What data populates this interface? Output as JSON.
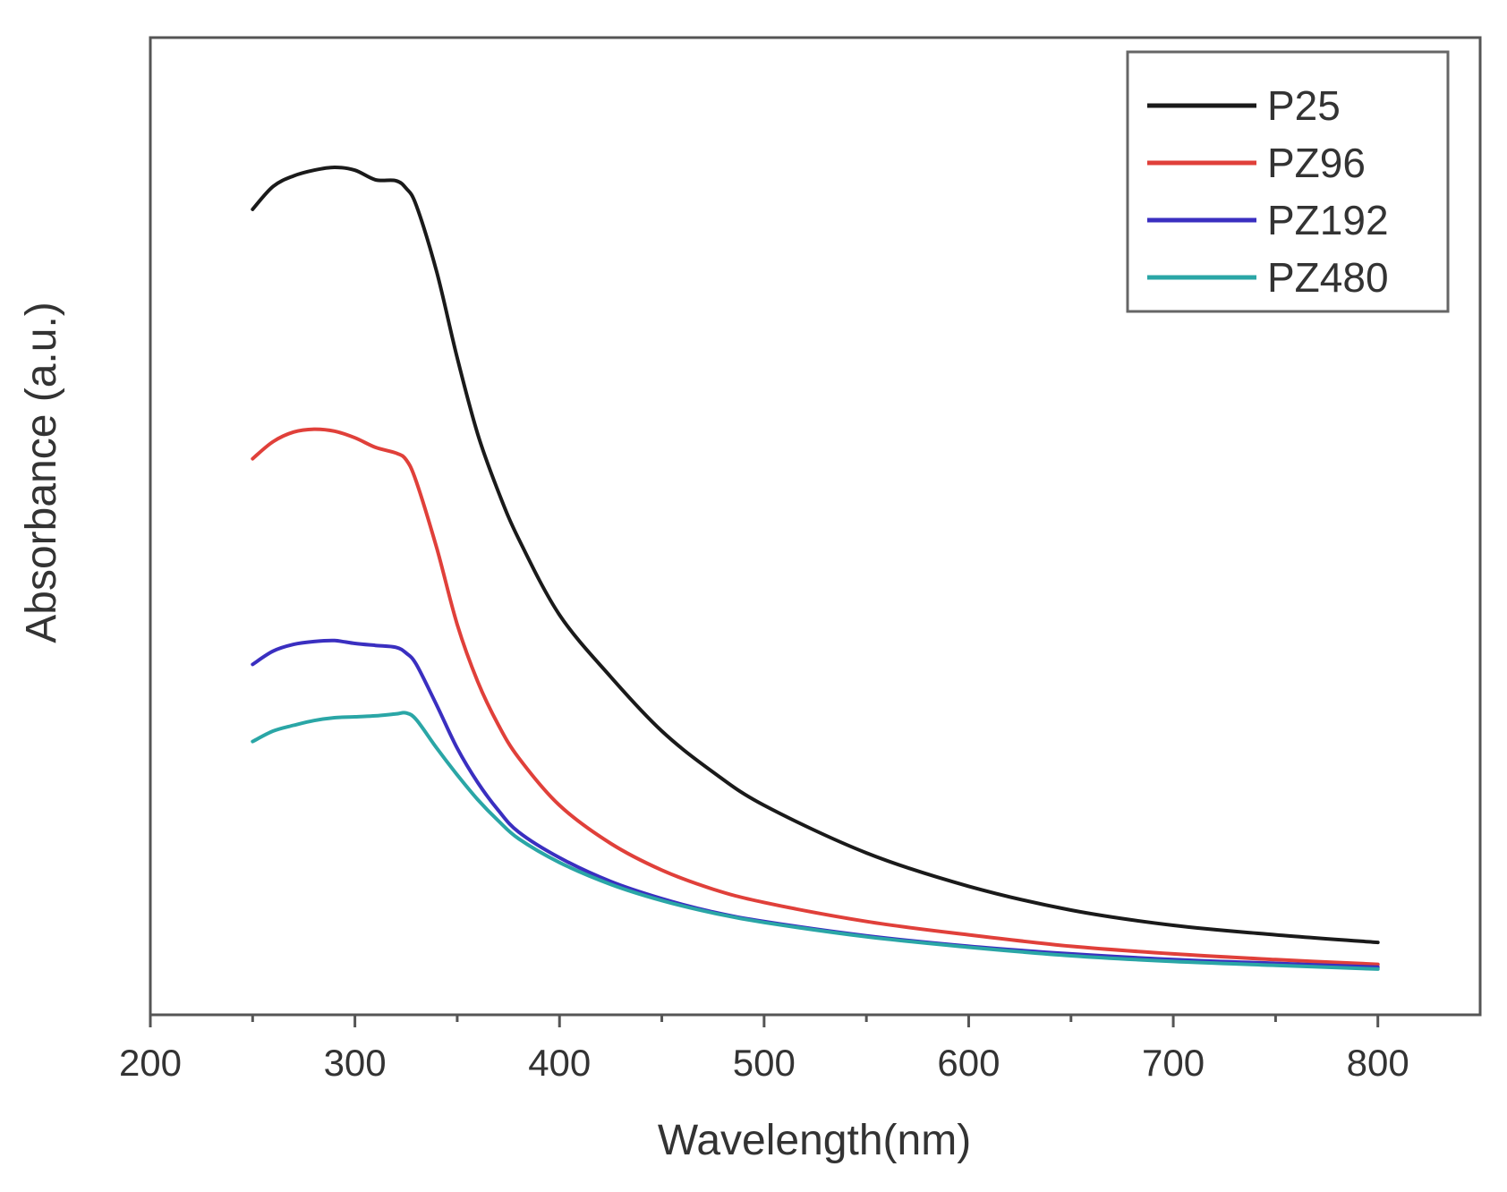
{
  "chart_data": {
    "type": "line",
    "title": "",
    "xlabel": "Wavelength(nm)",
    "ylabel": "Absorbance (a.u.)",
    "xlim": [
      200,
      850
    ],
    "ylim": [
      0,
      1.0
    ],
    "xticks": [
      200,
      300,
      400,
      500,
      600,
      700,
      800
    ],
    "xtick_labels": [
      "200",
      "300",
      "400",
      "500",
      "600",
      "700",
      "800"
    ],
    "yticks": [],
    "grid": false,
    "legend_position": "top-right",
    "x": [
      250,
      260,
      270,
      280,
      290,
      300,
      310,
      320,
      325,
      330,
      340,
      350,
      360,
      370,
      380,
      400,
      425,
      450,
      475,
      500,
      550,
      600,
      650,
      700,
      750,
      800
    ],
    "series": [
      {
        "name": "P25",
        "color": "#1a1a1a",
        "values": [
          0.846,
          0.87,
          0.881,
          0.887,
          0.89,
          0.887,
          0.877,
          0.876,
          0.868,
          0.85,
          0.78,
          0.69,
          0.61,
          0.55,
          0.5,
          0.42,
          0.355,
          0.298,
          0.255,
          0.22,
          0.17,
          0.135,
          0.11,
          0.094,
          0.084,
          0.076
        ]
      },
      {
        "name": "PZ96",
        "color": "#e0403a",
        "values": [
          0.584,
          0.602,
          0.612,
          0.615,
          0.613,
          0.606,
          0.596,
          0.59,
          0.583,
          0.56,
          0.49,
          0.41,
          0.35,
          0.305,
          0.27,
          0.22,
          0.18,
          0.152,
          0.132,
          0.118,
          0.098,
          0.084,
          0.072,
          0.064,
          0.058,
          0.053
        ]
      },
      {
        "name": "PZ192",
        "color": "#3a2fc0",
        "values": [
          0.368,
          0.382,
          0.389,
          0.392,
          0.393,
          0.39,
          0.388,
          0.386,
          0.38,
          0.368,
          0.325,
          0.28,
          0.244,
          0.215,
          0.192,
          0.165,
          0.14,
          0.122,
          0.108,
          0.098,
          0.083,
          0.072,
          0.064,
          0.058,
          0.054,
          0.05
        ]
      },
      {
        "name": "PZ480",
        "color": "#2aa6a6",
        "values": [
          0.287,
          0.298,
          0.304,
          0.309,
          0.312,
          0.313,
          0.314,
          0.316,
          0.317,
          0.31,
          0.28,
          0.252,
          0.226,
          0.204,
          0.185,
          0.16,
          0.137,
          0.12,
          0.107,
          0.097,
          0.082,
          0.071,
          0.062,
          0.056,
          0.052,
          0.048
        ]
      }
    ]
  }
}
